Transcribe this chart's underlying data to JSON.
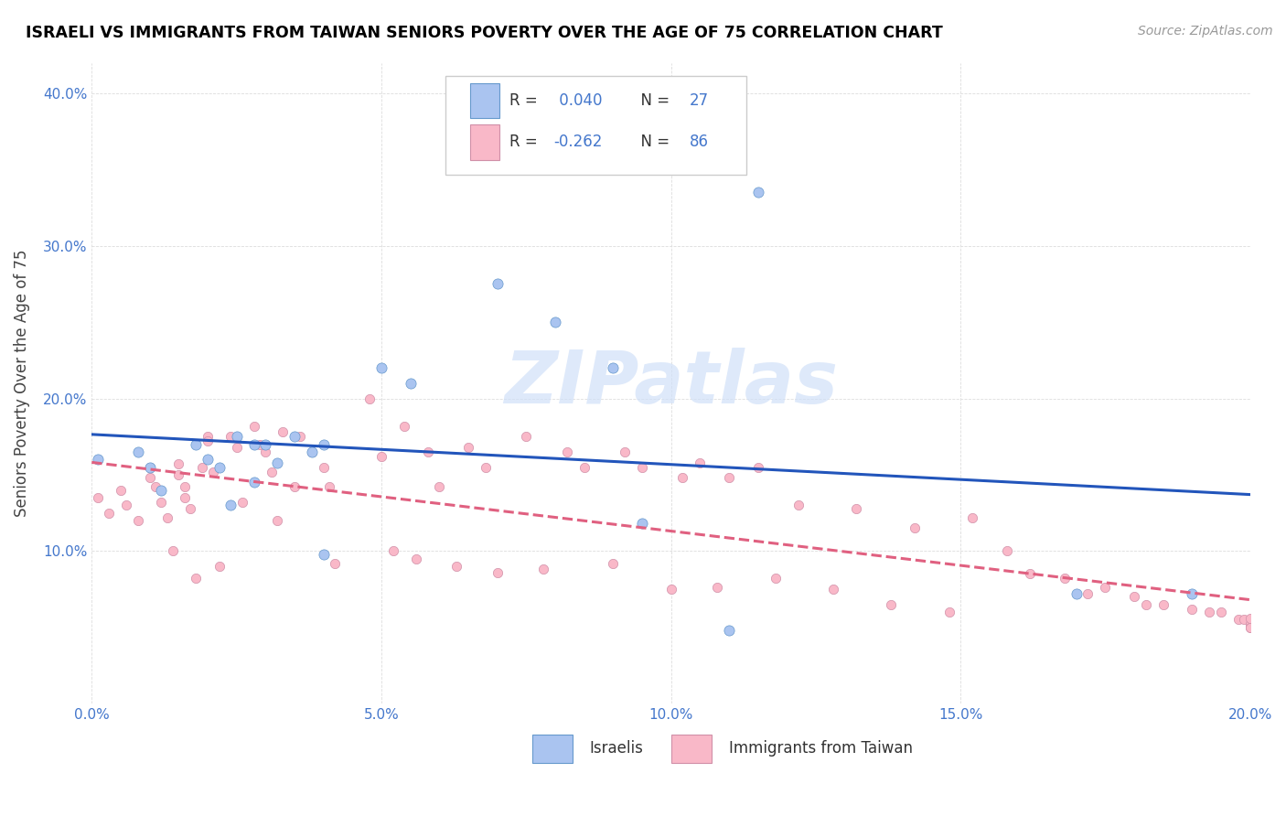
{
  "title": "ISRAELI VS IMMIGRANTS FROM TAIWAN SENIORS POVERTY OVER THE AGE OF 75 CORRELATION CHART",
  "source": "Source: ZipAtlas.com",
  "ylabel": "Seniors Poverty Over the Age of 75",
  "xlim": [
    0.0,
    0.2
  ],
  "ylim": [
    0.0,
    0.42
  ],
  "x_ticks": [
    0.0,
    0.05,
    0.1,
    0.15,
    0.2
  ],
  "x_tick_labels": [
    "0.0%",
    "5.0%",
    "10.0%",
    "15.0%",
    "20.0%"
  ],
  "y_ticks": [
    0.0,
    0.1,
    0.2,
    0.3,
    0.4
  ],
  "y_tick_labels": [
    "",
    "10.0%",
    "20.0%",
    "30.0%",
    "40.0%"
  ],
  "israeli_color": "#aac4f0",
  "taiwan_color": "#f9b8c8",
  "israeli_line_color": "#2255bb",
  "taiwan_line_color": "#e06080",
  "watermark_text": "ZIPatlas",
  "watermark_color": "#d0e0f8",
  "israeli_R": 0.04,
  "israeli_N": 27,
  "taiwan_R": -0.262,
  "taiwan_N": 86,
  "tick_color": "#4477cc",
  "source_color": "#999999",
  "israeli_points_x": [
    0.001,
    0.008,
    0.01,
    0.012,
    0.018,
    0.02,
    0.022,
    0.024,
    0.025,
    0.028,
    0.028,
    0.03,
    0.032,
    0.035,
    0.038,
    0.04,
    0.04,
    0.05,
    0.055,
    0.07,
    0.08,
    0.09,
    0.095,
    0.11,
    0.115,
    0.17,
    0.19
  ],
  "israeli_points_y": [
    0.16,
    0.165,
    0.155,
    0.14,
    0.17,
    0.16,
    0.155,
    0.13,
    0.175,
    0.17,
    0.145,
    0.17,
    0.158,
    0.175,
    0.165,
    0.17,
    0.098,
    0.22,
    0.21,
    0.275,
    0.25,
    0.22,
    0.118,
    0.048,
    0.335,
    0.072,
    0.072
  ],
  "taiwan_points_x": [
    0.001,
    0.003,
    0.005,
    0.006,
    0.008,
    0.01,
    0.01,
    0.011,
    0.012,
    0.013,
    0.014,
    0.015,
    0.015,
    0.016,
    0.016,
    0.017,
    0.018,
    0.019,
    0.02,
    0.02,
    0.021,
    0.022,
    0.024,
    0.025,
    0.026,
    0.028,
    0.029,
    0.03,
    0.031,
    0.032,
    0.033,
    0.035,
    0.036,
    0.038,
    0.04,
    0.041,
    0.042,
    0.048,
    0.05,
    0.052,
    0.054,
    0.056,
    0.058,
    0.06,
    0.063,
    0.065,
    0.068,
    0.07,
    0.075,
    0.078,
    0.082,
    0.085,
    0.09,
    0.092,
    0.095,
    0.1,
    0.102,
    0.105,
    0.108,
    0.11,
    0.115,
    0.118,
    0.122,
    0.128,
    0.132,
    0.138,
    0.142,
    0.148,
    0.152,
    0.158,
    0.162,
    0.168,
    0.172,
    0.175,
    0.18,
    0.182,
    0.185,
    0.19,
    0.193,
    0.195,
    0.198,
    0.199,
    0.2,
    0.2,
    0.2,
    0.2
  ],
  "taiwan_points_y": [
    0.135,
    0.125,
    0.14,
    0.13,
    0.12,
    0.155,
    0.148,
    0.142,
    0.132,
    0.122,
    0.1,
    0.157,
    0.15,
    0.142,
    0.135,
    0.128,
    0.082,
    0.155,
    0.175,
    0.172,
    0.152,
    0.09,
    0.175,
    0.168,
    0.132,
    0.182,
    0.17,
    0.165,
    0.152,
    0.12,
    0.178,
    0.142,
    0.175,
    0.165,
    0.155,
    0.142,
    0.092,
    0.2,
    0.162,
    0.1,
    0.182,
    0.095,
    0.165,
    0.142,
    0.09,
    0.168,
    0.155,
    0.086,
    0.175,
    0.088,
    0.165,
    0.155,
    0.092,
    0.165,
    0.155,
    0.075,
    0.148,
    0.158,
    0.076,
    0.148,
    0.155,
    0.082,
    0.13,
    0.075,
    0.128,
    0.065,
    0.115,
    0.06,
    0.122,
    0.1,
    0.085,
    0.082,
    0.072,
    0.076,
    0.07,
    0.065,
    0.065,
    0.062,
    0.06,
    0.06,
    0.055,
    0.055,
    0.052,
    0.056,
    0.05,
    0.05
  ]
}
